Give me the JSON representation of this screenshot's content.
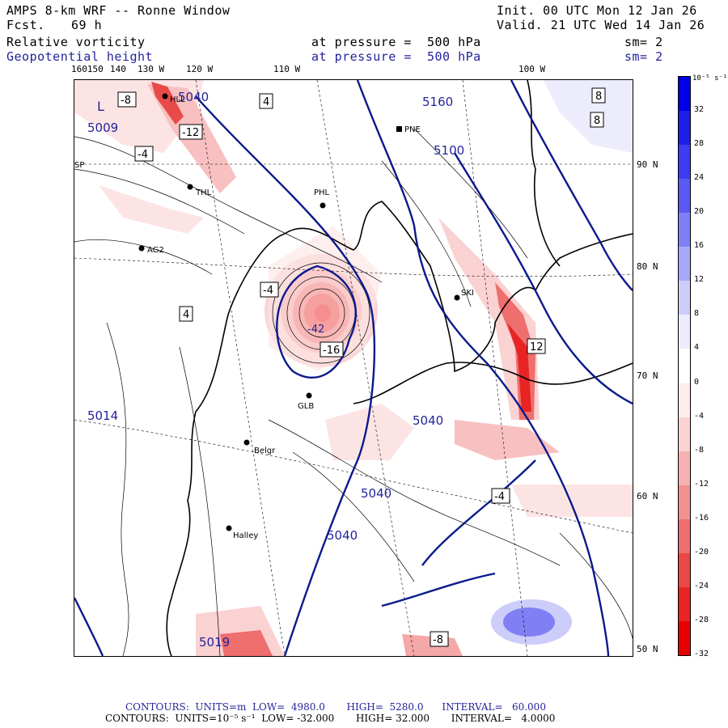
{
  "header": {
    "model": "AMPS 8-km WRF -- Ronne Window",
    "forecast_label": "Fcst.",
    "forecast_value": "69 h",
    "init": "Init. 00 UTC Mon 12 Jan 26",
    "valid": "Valid. 21 UTC Wed 14 Jan 26",
    "field1": "Relative vorticity",
    "field2": "Geopotential height",
    "pressure1": "at pressure =  500 hPa",
    "pressure2": "at pressure =  500 hPa",
    "sm1": "sm= 2",
    "sm2": "sm= 2"
  },
  "lon_labels": [
    "160150",
    "140",
    "130 W",
    "120 W",
    "110 W",
    "100 W"
  ],
  "lat_labels": [
    "90 N",
    "80 N",
    "70 N",
    "60 N",
    "50 N"
  ],
  "stations": [
    {
      "name": "HLL"
    },
    {
      "name": "PNE"
    },
    {
      "name": "THL"
    },
    {
      "name": "PHL"
    },
    {
      "name": "AG2"
    },
    {
      "name": "SKI"
    },
    {
      "name": "GLB"
    },
    {
      "name": "Belgr"
    },
    {
      "name": "Halley"
    },
    {
      "name": "SP"
    }
  ],
  "height_labels": [
    "5040",
    "5160",
    "5100",
    "5009",
    "5014",
    "5040",
    "5040",
    "5040",
    "5019"
  ],
  "contour_labels": [
    "-8",
    "-12",
    "-4",
    "4",
    "8",
    "-16",
    "-4",
    "4",
    "8",
    "12",
    "-8",
    "-4"
  ],
  "pressure_system": {
    "low_marker": "L",
    "low_value": "-42"
  },
  "colorbar": {
    "unit": "10⁻⁵ s⁻¹",
    "ticks": [
      "32",
      "28",
      "24",
      "20",
      "16",
      "12",
      "8",
      "4",
      "0",
      "-4",
      "-8",
      "-12",
      "-16",
      "-20",
      "-24",
      "-28",
      "-32"
    ],
    "colors": [
      "#0000e8",
      "#1e1ee8",
      "#3c3cf0",
      "#5a5af0",
      "#8080f4",
      "#a8a8f8",
      "#cdcdfa",
      "#ececfd",
      "#ffffff",
      "#fdecec",
      "#fad2d2",
      "#f6b2b2",
      "#f29090",
      "#ef6e6e",
      "#eb4848",
      "#e82424",
      "#e80000"
    ]
  },
  "footer": {
    "line1": "CONTOURS:  UNITS=m  LOW=  4980.0       HIGH=  5280.0      INTERVAL=   60.000",
    "line2": "CONTOURS:  UNITS=10⁻⁵ s⁻¹  LOW= -32.000       HIGH= 32.000       INTERVAL=   4.0000"
  }
}
